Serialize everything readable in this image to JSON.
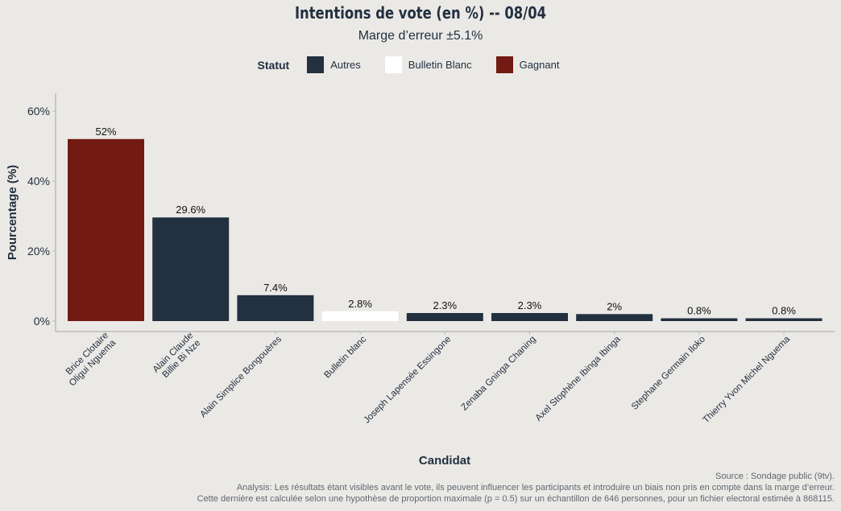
{
  "chart_data": {
    "type": "bar",
    "title": "Intentions de vote (en %) -- 08/04",
    "subtitle": "Marge d’erreur ±5.1%",
    "xlabel": "Candidat",
    "ylabel": "Pourcentage (%)",
    "ylim": [
      0,
      65
    ],
    "yticks": [
      0,
      20,
      40,
      60
    ],
    "ytick_labels": [
      "0%",
      "20%",
      "40%",
      "60%"
    ],
    "legend": {
      "title": "Statut",
      "placement": "top-center",
      "entries": [
        {
          "label": "Autres",
          "color": "#223040"
        },
        {
          "label": "Bulletin Blanc",
          "color": "#ffffff"
        },
        {
          "label": "Gagnant",
          "color": "#731a12"
        }
      ]
    },
    "categories": [
      [
        "Brice Clotaire",
        "Oligui Nguema"
      ],
      [
        "Alain Claude",
        "Billie Bi Nze"
      ],
      [
        "Alain Simplice Bongouères"
      ],
      [
        "Bulletin blanc"
      ],
      [
        "Joseph Lapensée Essingone"
      ],
      [
        "Zenaba Gninga Chaning"
      ],
      [
        "Axel Stophène Ibinga Ibinga"
      ],
      [
        "Stephane Germain Iloko"
      ],
      [
        "Thierry Yvon Michel Nguema"
      ]
    ],
    "values": [
      52,
      29.6,
      7.4,
      2.8,
      2.3,
      2.3,
      2,
      0.8,
      0.8
    ],
    "value_labels": [
      "52%",
      "29.6%",
      "7.4%",
      "2.8%",
      "2.3%",
      "2.3%",
      "2%",
      "0.8%",
      "0.8%"
    ],
    "statuses": [
      "Gagnant",
      "Autres",
      "Autres",
      "Bulletin Blanc",
      "Autres",
      "Autres",
      "Autres",
      "Autres",
      "Autres"
    ],
    "grid": false
  },
  "caption": {
    "source": "Source : Sondage public (9tv).",
    "analysis_line1": "Analysis: Les résultats étant visibles avant le vote, ils peuvent influencer les participants et introduire un biais non pris en compte dans la marge d’erreur.",
    "analysis_line2": "Cette dernière est calculée selon une hypothèse de proportion maximale (p = 0.5) sur un échantillon de 646 personnes, pour un fichier electoral estimée à 868115."
  }
}
